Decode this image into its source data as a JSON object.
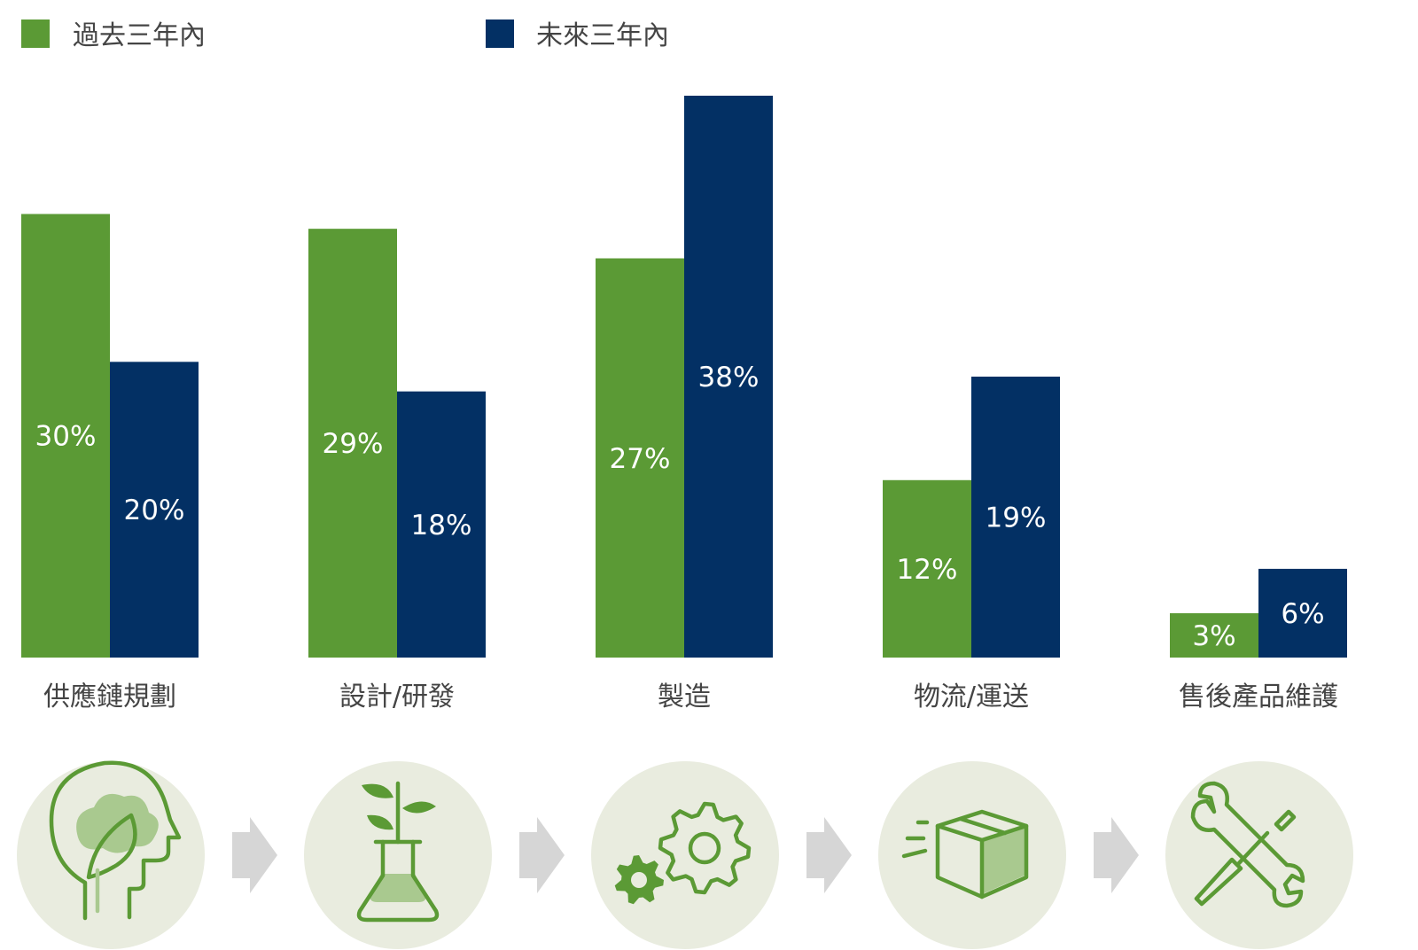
{
  "colors": {
    "past": "#5b9a35",
    "future": "#033064",
    "circle": "#e9ecdf",
    "arrow": "#d6d6d6",
    "icon_green": "#5b9a35",
    "icon_light": "#a9c98f"
  },
  "icons": [
    "head-leaf-icon",
    "plant-flask-icon",
    "gears-icon",
    "box-icon",
    "wrench-screwdriver-icon"
  ],
  "chart_data": {
    "type": "bar",
    "categories": [
      "供應鏈規劃",
      "設計/研發",
      "製造",
      "物流/運送",
      "售後產品維護"
    ],
    "series": [
      {
        "name": "過去三年內",
        "values": [
          30,
          29,
          27,
          12,
          3
        ],
        "labels": [
          "30%",
          "29%",
          "27%",
          "12%",
          "3%"
        ]
      },
      {
        "name": "未來三年內",
        "values": [
          20,
          18,
          38,
          19,
          6
        ],
        "labels": [
          "20%",
          "18%",
          "38%",
          "19%",
          "6%"
        ]
      }
    ],
    "ylim": [
      0,
      38
    ],
    "grid": false,
    "legend": "top-left"
  }
}
